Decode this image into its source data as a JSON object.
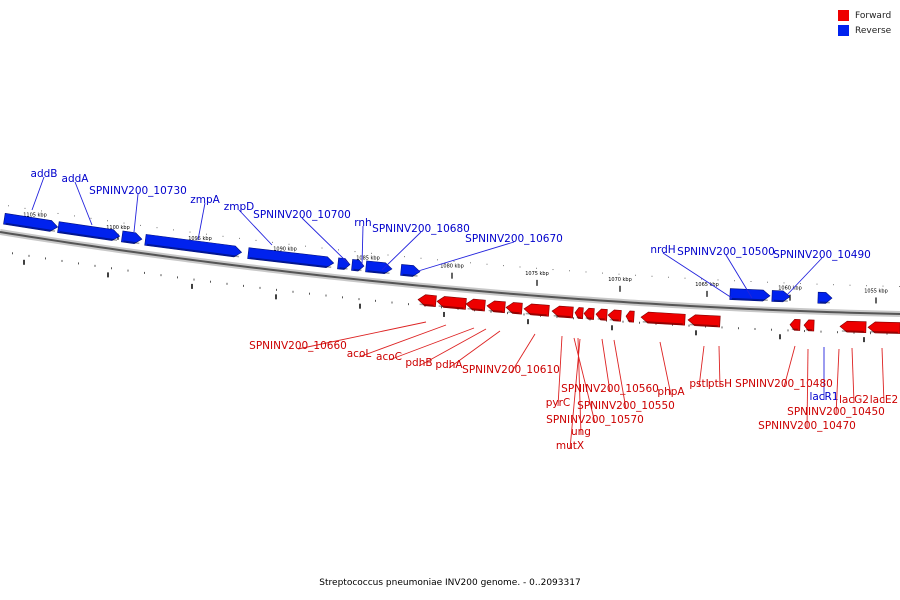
{
  "legend": {
    "forward_label": "Forward",
    "reverse_label": "Reverse",
    "forward_color": "#ee0000",
    "reverse_color": "#0022ee"
  },
  "caption": "Streptococcus pneumoniae INV200 genome. - 0..2093317",
  "scale_ticks": [
    "1105 kbp",
    "1100 kbp",
    "1095 kbp",
    "1090 kbp",
    "1085 kbp",
    "1080 kbp",
    "1075 kbp",
    "1070 kbp",
    "1065 kbp",
    "1060 kbp",
    "1055 kbp"
  ],
  "reverse_genes": [
    "addB",
    "addA",
    "SPNINV200_10730",
    "zmpA",
    "zmpD",
    "SPNINV200_10700",
    "rnh",
    "SPNINV200_10680",
    "SPNINV200_10670",
    "nrdH",
    "SPNINV200_10500",
    "SPNINV200_10490",
    "lacR1"
  ],
  "forward_genes": [
    "SPNINV200_10660",
    "acoL",
    "acoC",
    "pdhB",
    "pdhA",
    "SPNINV200_10610",
    "pyrC",
    "SPNINV200_10570",
    "ung",
    "mutX",
    "SPNINV200_10560",
    "SPNINV200_10550",
    "phpA",
    "pstI",
    "ptsH",
    "SPNINV200_10480",
    "SPNINV200_10470",
    "SPNINV200_10450",
    "lacG2",
    "lacE2"
  ]
}
